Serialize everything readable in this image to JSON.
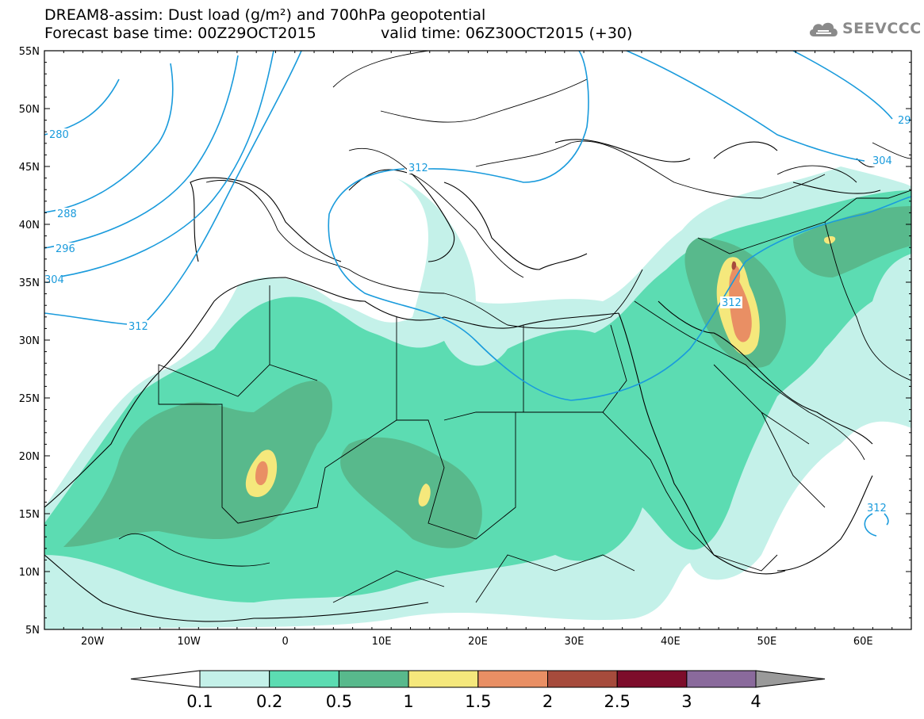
{
  "title": {
    "line1": "DREAM8-assim: Dust load (g/m²) and 700hPa geopotential",
    "line2_left": "Forecast base time: 00Z29OCT2015",
    "line2_right": "valid time: 06Z30OCT2015 (+30)"
  },
  "logo": {
    "text": "SEEVCCC",
    "icon": "cloud-icon"
  },
  "map": {
    "lon_range": [
      -25,
      65
    ],
    "lat_range": [
      5,
      55
    ],
    "lat_labels": [
      "55N",
      "50N",
      "45N",
      "40N",
      "35N",
      "30N",
      "25N",
      "20N",
      "15N",
      "10N",
      "5N"
    ],
    "lon_labels": [
      "20W",
      "10W",
      "0",
      "10E",
      "20E",
      "30E",
      "40E",
      "50E",
      "60E"
    ],
    "contour_labels": [
      "280",
      "288",
      "296",
      "304",
      "312",
      "304",
      "312",
      "29",
      "312",
      "312"
    ],
    "contour_color": "#1a9bdc",
    "border_color": "#000000"
  },
  "colorbar": {
    "levels": [
      "0.1",
      "0.2",
      "0.5",
      "1",
      "1.5",
      "2",
      "2.5",
      "3",
      "4"
    ],
    "colors": [
      "#c4f1e9",
      "#5cdcb2",
      "#58b98c",
      "#f5e87c",
      "#e98f64",
      "#a64b3c",
      "#7d0d2b",
      "#8a6a9c",
      "#9a9a9a"
    ],
    "under_color": "#ffffff"
  }
}
